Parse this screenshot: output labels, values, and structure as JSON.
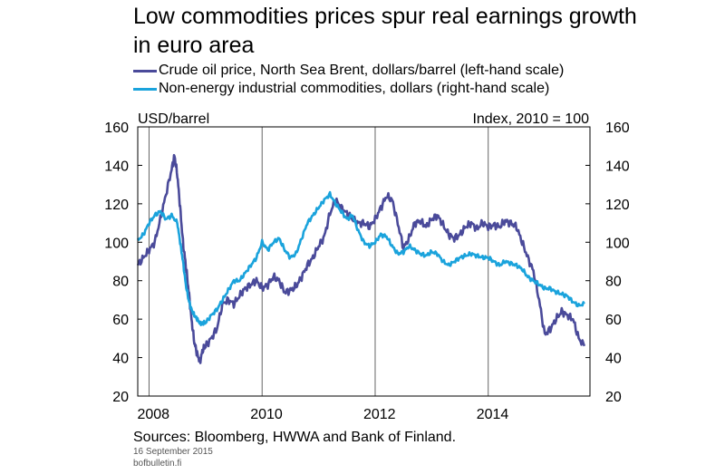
{
  "chart_data": {
    "type": "line",
    "title": "Low commodities prices spur real earnings growth in euro area",
    "left_axis_unit": "USD/barrel",
    "right_axis_unit": "Index, 2010 = 100",
    "ylim_left": [
      20,
      160
    ],
    "ylim_right": [
      20,
      160
    ],
    "yticks": [
      20,
      40,
      60,
      80,
      100,
      120,
      140,
      160
    ],
    "xlim": [
      2007.8,
      2015.8
    ],
    "xticks": [
      "2008",
      "2010",
      "2012",
      "2014"
    ],
    "xtick_values": [
      2008,
      2010,
      2012,
      2014
    ],
    "grid": "vertical",
    "legend_position": "top",
    "series": [
      {
        "name": "Crude oil price, North Sea Brent, dollars/barrel (left-hand scale)",
        "axis": "left",
        "color": "#4a4a9a",
        "x": [
          2007.8,
          2007.9,
          2008.0,
          2008.1,
          2008.2,
          2008.3,
          2008.4,
          2008.45,
          2008.5,
          2008.55,
          2008.6,
          2008.65,
          2008.7,
          2008.75,
          2008.8,
          2008.85,
          2008.9,
          2008.95,
          2009.0,
          2009.1,
          2009.2,
          2009.3,
          2009.4,
          2009.5,
          2009.6,
          2009.7,
          2009.8,
          2009.9,
          2010.0,
          2010.1,
          2010.2,
          2010.3,
          2010.4,
          2010.5,
          2010.6,
          2010.7,
          2010.8,
          2010.9,
          2011.0,
          2011.1,
          2011.2,
          2011.3,
          2011.4,
          2011.5,
          2011.6,
          2011.7,
          2011.8,
          2011.9,
          2012.0,
          2012.1,
          2012.2,
          2012.3,
          2012.4,
          2012.5,
          2012.6,
          2012.7,
          2012.8,
          2012.9,
          2013.0,
          2013.1,
          2013.2,
          2013.3,
          2013.4,
          2013.5,
          2013.6,
          2013.7,
          2013.8,
          2013.9,
          2014.0,
          2014.1,
          2014.2,
          2014.3,
          2014.4,
          2014.5,
          2014.6,
          2014.7,
          2014.8,
          2014.9,
          2015.0,
          2015.1,
          2015.2,
          2015.3,
          2015.4,
          2015.5,
          2015.6,
          2015.7
        ],
        "values": [
          88,
          92,
          96,
          100,
          112,
          125,
          138,
          145,
          135,
          118,
          100,
          88,
          75,
          60,
          48,
          42,
          38,
          44,
          46,
          50,
          55,
          68,
          70,
          68,
          72,
          76,
          78,
          80,
          76,
          78,
          82,
          80,
          74,
          75,
          77,
          82,
          88,
          92,
          98,
          103,
          115,
          122,
          118,
          115,
          112,
          110,
          110,
          108,
          112,
          118,
          124,
          122,
          110,
          97,
          102,
          110,
          111,
          108,
          112,
          114,
          109,
          104,
          102,
          104,
          108,
          110,
          107,
          110,
          108,
          109,
          108,
          111,
          110,
          108,
          100,
          92,
          85,
          70,
          52,
          55,
          60,
          64,
          62,
          60,
          50,
          46
        ]
      },
      {
        "name": "Non-energy industrial commodities, dollars (right-hand scale)",
        "axis": "right",
        "color": "#1aa3dc",
        "x": [
          2007.8,
          2007.9,
          2008.0,
          2008.1,
          2008.2,
          2008.3,
          2008.4,
          2008.5,
          2008.55,
          2008.6,
          2008.65,
          2008.7,
          2008.75,
          2008.8,
          2008.85,
          2008.9,
          2008.95,
          2009.0,
          2009.1,
          2009.2,
          2009.3,
          2009.4,
          2009.5,
          2009.6,
          2009.7,
          2009.8,
          2009.9,
          2010.0,
          2010.1,
          2010.2,
          2010.3,
          2010.4,
          2010.5,
          2010.6,
          2010.7,
          2010.8,
          2010.9,
          2011.0,
          2011.1,
          2011.2,
          2011.3,
          2011.4,
          2011.5,
          2011.6,
          2011.7,
          2011.8,
          2011.9,
          2012.0,
          2012.1,
          2012.2,
          2012.3,
          2012.4,
          2012.5,
          2012.6,
          2012.7,
          2012.8,
          2012.9,
          2013.0,
          2013.1,
          2013.2,
          2013.3,
          2013.4,
          2013.5,
          2013.6,
          2013.7,
          2013.8,
          2013.9,
          2014.0,
          2014.1,
          2014.2,
          2014.3,
          2014.4,
          2014.5,
          2014.6,
          2014.7,
          2014.8,
          2014.9,
          2015.0,
          2015.1,
          2015.2,
          2015.3,
          2015.4,
          2015.5,
          2015.6,
          2015.7
        ],
        "values": [
          101,
          104,
          110,
          114,
          116,
          112,
          114,
          110,
          100,
          90,
          78,
          70,
          65,
          62,
          60,
          58,
          58,
          58,
          62,
          65,
          70,
          75,
          80,
          80,
          84,
          88,
          92,
          100,
          96,
          100,
          102,
          96,
          92,
          94,
          102,
          110,
          114,
          118,
          122,
          125,
          120,
          116,
          112,
          114,
          106,
          100,
          98,
          100,
          104,
          103,
          98,
          94,
          95,
          98,
          96,
          94,
          93,
          95,
          94,
          90,
          88,
          90,
          92,
          93,
          94,
          93,
          92,
          92,
          90,
          88,
          90,
          89,
          88,
          86,
          82,
          80,
          78,
          76,
          76,
          74,
          73,
          72,
          69,
          67,
          68
        ]
      }
    ]
  },
  "footer": {
    "sources": "Sources: Bloomberg, HWWA and Bank of Finland.",
    "date": "16 September 2015",
    "site": "bofbulletin.fi"
  }
}
